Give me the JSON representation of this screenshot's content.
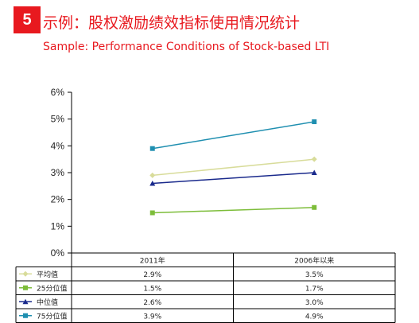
{
  "header": {
    "badge": "5",
    "title_cn": "示例：股权激励绩效指标使用情况统计",
    "title_en": "Sample: Performance Conditions of Stock-based LTI"
  },
  "colors": {
    "accent": "#e8191f",
    "grid": "#000000"
  },
  "chart_data": {
    "type": "line",
    "categories": [
      "2011年",
      "2006年以来"
    ],
    "ylim": [
      0,
      6
    ],
    "yticks": [
      "0%",
      "1%",
      "2%",
      "3%",
      "4%",
      "5%",
      "6%"
    ],
    "unit": "%",
    "grid": false,
    "legend": "table-below",
    "series": [
      {
        "name": "平均值",
        "values": [
          2.9,
          3.5
        ],
        "labels": [
          "2.9%",
          "3.5%"
        ],
        "color": "#d8dc9a",
        "marker": "diamond"
      },
      {
        "name": "25分位值",
        "values": [
          1.5,
          1.7
        ],
        "labels": [
          "1.5%",
          "1.7%"
        ],
        "color": "#7dbd3a",
        "marker": "square"
      },
      {
        "name": "中位值",
        "values": [
          2.6,
          3.0
        ],
        "labels": [
          "2.6%",
          "3.0%"
        ],
        "color": "#1a2a8c",
        "marker": "triangle"
      },
      {
        "name": "75分位值",
        "values": [
          3.9,
          4.9
        ],
        "labels": [
          "3.9%",
          "4.9%"
        ],
        "color": "#1f8fb0",
        "marker": "square"
      }
    ]
  }
}
